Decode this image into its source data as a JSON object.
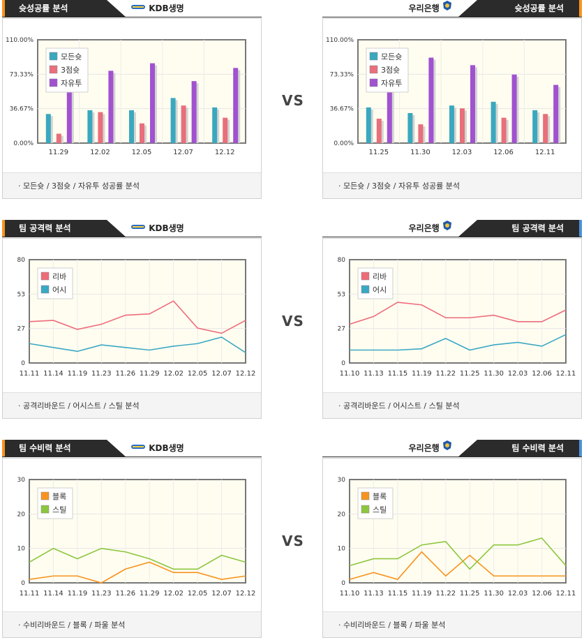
{
  "vs_label": "VS",
  "teams": {
    "left": "KDB생명",
    "right": "우리은행"
  },
  "sections": [
    {
      "title": "슛성공률 분석",
      "footer": "·  모든슛 / 3점슛 / 자유투 성공률 분석",
      "tab_accent_right": "#f7941d"
    },
    {
      "title": "팀 공격력 분석",
      "footer": "· 공격리바운드 / 어시스트 / 스틸 분석",
      "tab_accent_right": "#4a90d9"
    },
    {
      "title": "팀 수비력 분석",
      "footer": "· 수비리바운드 / 블록 / 파울 분석",
      "tab_accent_right": "#4a90d9"
    }
  ],
  "chart_data": [
    {
      "id": "shot-left",
      "type": "bar",
      "categories": [
        "11.29",
        "12.02",
        "12.05",
        "12.07",
        "12.12"
      ],
      "yticks": [
        "0.00%",
        "36.67%",
        "73.33%",
        "110.00%"
      ],
      "ylim": [
        0,
        110
      ],
      "legend_placement": "top-left",
      "series": [
        {
          "name": "모든슛",
          "color": "#3aa8be",
          "values": [
            31,
            35,
            35,
            48,
            38
          ]
        },
        {
          "name": "3점슛",
          "color": "#e86f7b",
          "values": [
            10,
            33,
            21,
            40,
            27
          ]
        },
        {
          "name": "자유투",
          "color": "#a052cf",
          "values": [
            67,
            77,
            85,
            66,
            80
          ]
        }
      ]
    },
    {
      "id": "shot-right",
      "type": "bar",
      "categories": [
        "11.25",
        "11.30",
        "12.03",
        "12.06",
        "12.11"
      ],
      "yticks": [
        "0.00%",
        "36.67%",
        "73.33%",
        "110.00%"
      ],
      "ylim": [
        0,
        110
      ],
      "legend_placement": "top-left",
      "series": [
        {
          "name": "모든슛",
          "color": "#3aa8be",
          "values": [
            38,
            32,
            40,
            44,
            35
          ]
        },
        {
          "name": "3점슛",
          "color": "#e86f7b",
          "values": [
            26,
            20,
            37,
            27,
            31
          ]
        },
        {
          "name": "자유투",
          "color": "#a052cf",
          "values": [
            62,
            91,
            83,
            73,
            62
          ]
        }
      ]
    },
    {
      "id": "off-left",
      "type": "line",
      "x": [
        "11.11",
        "11.14",
        "11.19",
        "11.23",
        "11.26",
        "11.29",
        "12.02",
        "12.05",
        "12.07",
        "12.12"
      ],
      "yticks": [
        "0",
        "27",
        "53",
        "80"
      ],
      "ylim": [
        0,
        80
      ],
      "legend_placement": "top-left",
      "series": [
        {
          "name": "리바",
          "color": "#ee6b7a",
          "values": [
            32,
            33,
            26,
            30,
            37,
            38,
            48,
            27,
            23,
            33
          ]
        },
        {
          "name": "어시",
          "color": "#3aa8c4",
          "values": [
            15,
            12,
            9,
            14,
            12,
            10,
            13,
            15,
            20,
            8
          ]
        }
      ]
    },
    {
      "id": "off-right",
      "type": "line",
      "x": [
        "11.10",
        "11.13",
        "11.15",
        "11.19",
        "11.22",
        "11.25",
        "11.30",
        "12.03",
        "12.06",
        "12.11"
      ],
      "yticks": [
        "0",
        "27",
        "53",
        "80"
      ],
      "ylim": [
        0,
        80
      ],
      "legend_placement": "top-left",
      "series": [
        {
          "name": "리바",
          "color": "#ee6b7a",
          "values": [
            30,
            36,
            47,
            45,
            35,
            35,
            37,
            32,
            32,
            41
          ]
        },
        {
          "name": "어시",
          "color": "#3aa8c4",
          "values": [
            10,
            10,
            10,
            11,
            19,
            10,
            14,
            16,
            13,
            22
          ]
        }
      ]
    },
    {
      "id": "def-left",
      "type": "line",
      "x": [
        "11.11",
        "11.14",
        "11.19",
        "11.23",
        "11.26",
        "11.29",
        "12.02",
        "12.05",
        "12.07",
        "12.12"
      ],
      "yticks": [
        "0",
        "10",
        "20",
        "30"
      ],
      "ylim": [
        0,
        30
      ],
      "legend_placement": "top-left",
      "series": [
        {
          "name": "블록",
          "color": "#f7931e",
          "values": [
            1,
            2,
            2,
            0,
            4,
            6,
            3,
            3,
            1,
            2
          ]
        },
        {
          "name": "스틸",
          "color": "#8cc63e",
          "values": [
            6,
            10,
            7,
            10,
            9,
            7,
            4,
            4,
            8,
            6
          ]
        }
      ]
    },
    {
      "id": "def-right",
      "type": "line",
      "x": [
        "11.10",
        "11.13",
        "11.15",
        "11.19",
        "11.22",
        "11.25",
        "11.30",
        "12.03",
        "12.06",
        "12.11"
      ],
      "yticks": [
        "0",
        "10",
        "20",
        "30"
      ],
      "ylim": [
        0,
        30
      ],
      "legend_placement": "top-left",
      "series": [
        {
          "name": "블록",
          "color": "#f7931e",
          "values": [
            1,
            3,
            1,
            9,
            2,
            8,
            2,
            2,
            2,
            2
          ]
        },
        {
          "name": "스틸",
          "color": "#8cc63e",
          "values": [
            5,
            7,
            7,
            11,
            12,
            4,
            11,
            11,
            13,
            5
          ]
        }
      ]
    }
  ]
}
